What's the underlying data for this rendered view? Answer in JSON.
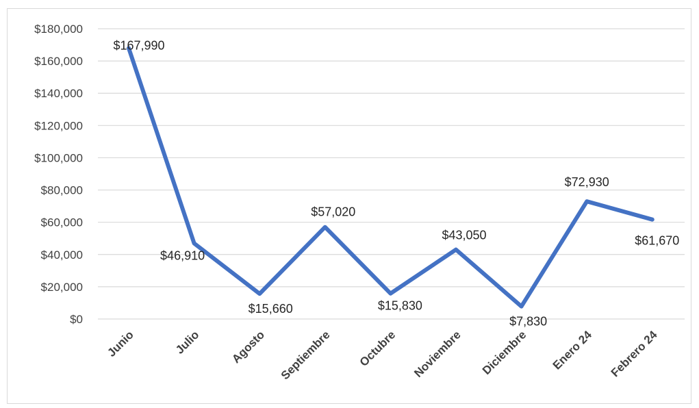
{
  "chart_data": {
    "type": "line",
    "title": "",
    "xlabel": "",
    "ylabel": "",
    "categories": [
      "Junio",
      "Julio",
      "Agosto",
      "Septiembre",
      "Octubre",
      "Noviembre",
      "Diciembre",
      "Enero 24",
      "Febrero 24"
    ],
    "series": [
      {
        "values": [
          167990,
          46910,
          15660,
          57020,
          15830,
          43050,
          7830,
          72930,
          61670
        ],
        "data_labels": [
          "$167,990",
          "$46,910",
          "$15,660",
          "$57,020",
          "$15,830",
          "$43,050",
          "$7,830",
          "$72,930",
          "$61,670"
        ]
      }
    ],
    "ylim": [
      0,
      180000
    ],
    "yticks": [
      0,
      20000,
      40000,
      60000,
      80000,
      100000,
      120000,
      140000,
      160000,
      180000
    ],
    "ytick_labels": [
      "$0",
      "$20,000",
      "$40,000",
      "$60,000",
      "$80,000",
      "$100,000",
      "$120,000",
      "$140,000",
      "$160,000",
      "$180,000"
    ],
    "grid": true,
    "legend": "none",
    "colors": {
      "line": "#4472C4",
      "grid": "#d9d9d9"
    }
  }
}
